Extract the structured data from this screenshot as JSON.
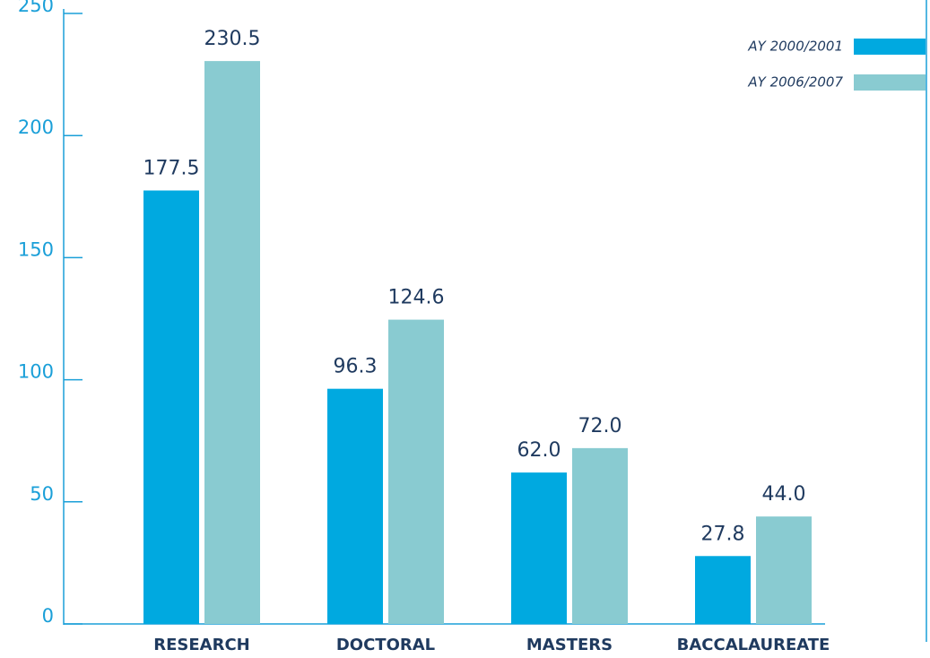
{
  "chart_data": {
    "type": "bar",
    "categories": [
      "RESEARCH",
      "DOCTORAL",
      "MASTERS",
      "BACCALAUREATE"
    ],
    "series": [
      {
        "name": "AY 2000/2001",
        "color": "#00a9e0",
        "values": [
          177.5,
          96.3,
          62.0,
          27.8
        ],
        "value_labels": [
          "177.5",
          "96.3",
          "62.0",
          "27.8"
        ]
      },
      {
        "name": "AY 2006/2007",
        "color": "#89cbd1",
        "values": [
          230.5,
          124.6,
          72.0,
          44.0
        ],
        "value_labels": [
          "230.5",
          "124.6",
          "72.0",
          "44.0"
        ]
      }
    ],
    "ylim": [
      0,
      250
    ],
    "yticks": [
      0,
      50,
      100,
      150,
      200,
      250
    ],
    "legend": "top-right"
  }
}
